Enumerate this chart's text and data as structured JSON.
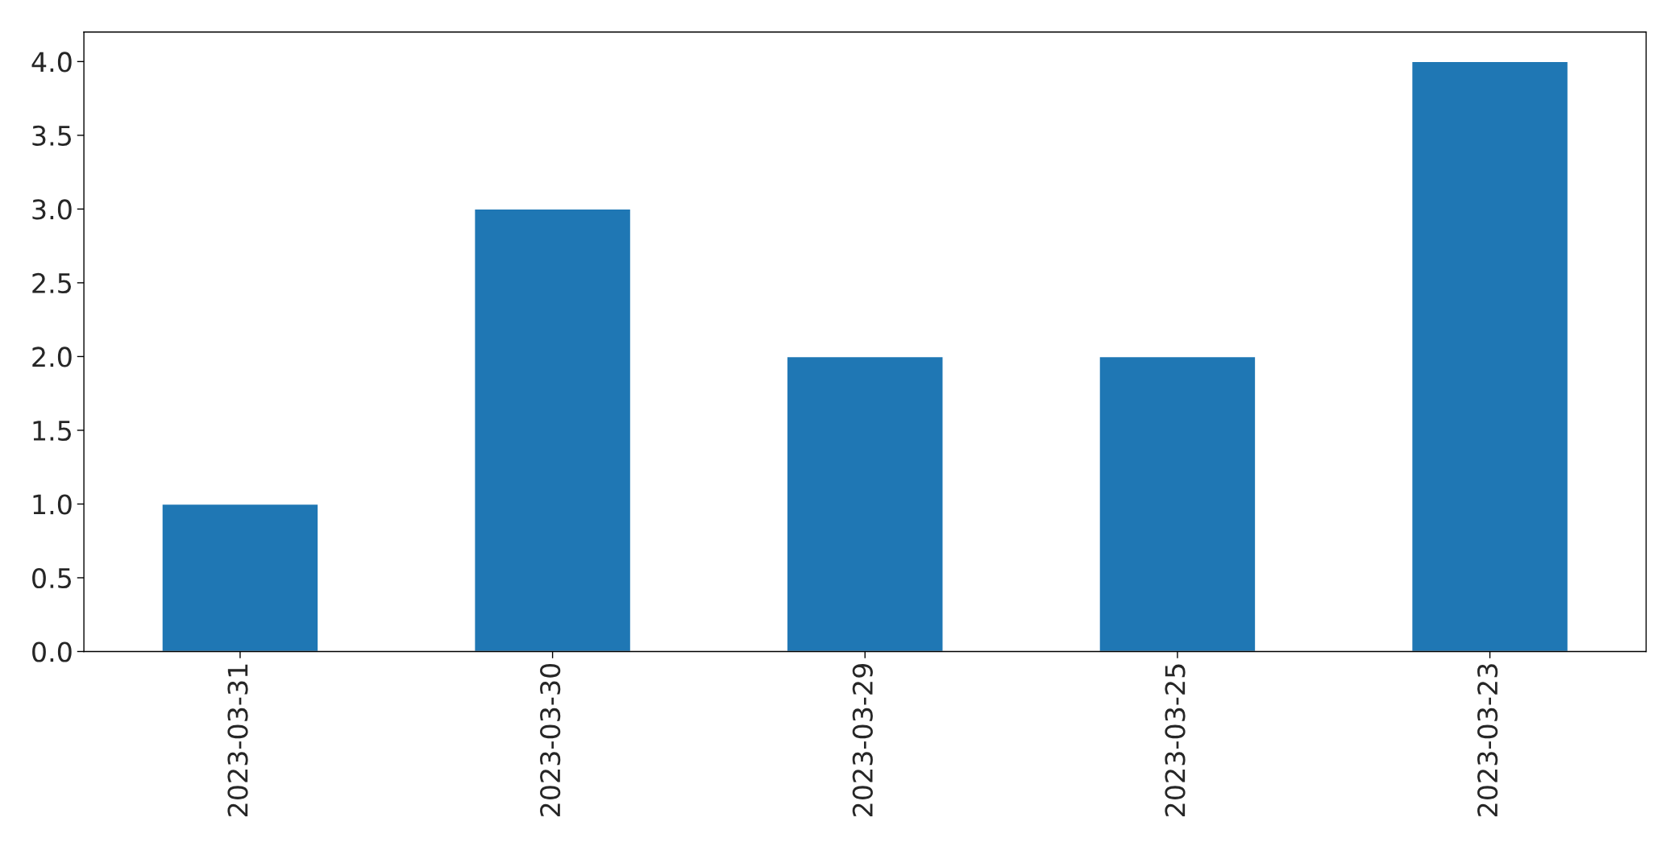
{
  "chart_data": {
    "type": "bar",
    "categories": [
      "2023-03-31",
      "2023-03-30",
      "2023-03-29",
      "2023-03-25",
      "2023-03-23"
    ],
    "values": [
      1,
      3,
      2,
      2,
      4
    ],
    "color": "#1f77b4",
    "ylim": [
      0,
      4.2
    ],
    "yticks": [
      {
        "value": 0,
        "label": "0.0"
      },
      {
        "value": 0.5,
        "label": "0.5"
      },
      {
        "value": 1,
        "label": "1.0"
      },
      {
        "value": 1.5,
        "label": "1.5"
      },
      {
        "value": 2,
        "label": "2.0"
      },
      {
        "value": 2.5,
        "label": "2.5"
      },
      {
        "value": 3,
        "label": "3.0"
      },
      {
        "value": 3.5,
        "label": "3.5"
      },
      {
        "value": 4,
        "label": "4.0"
      }
    ],
    "grid": false
  }
}
